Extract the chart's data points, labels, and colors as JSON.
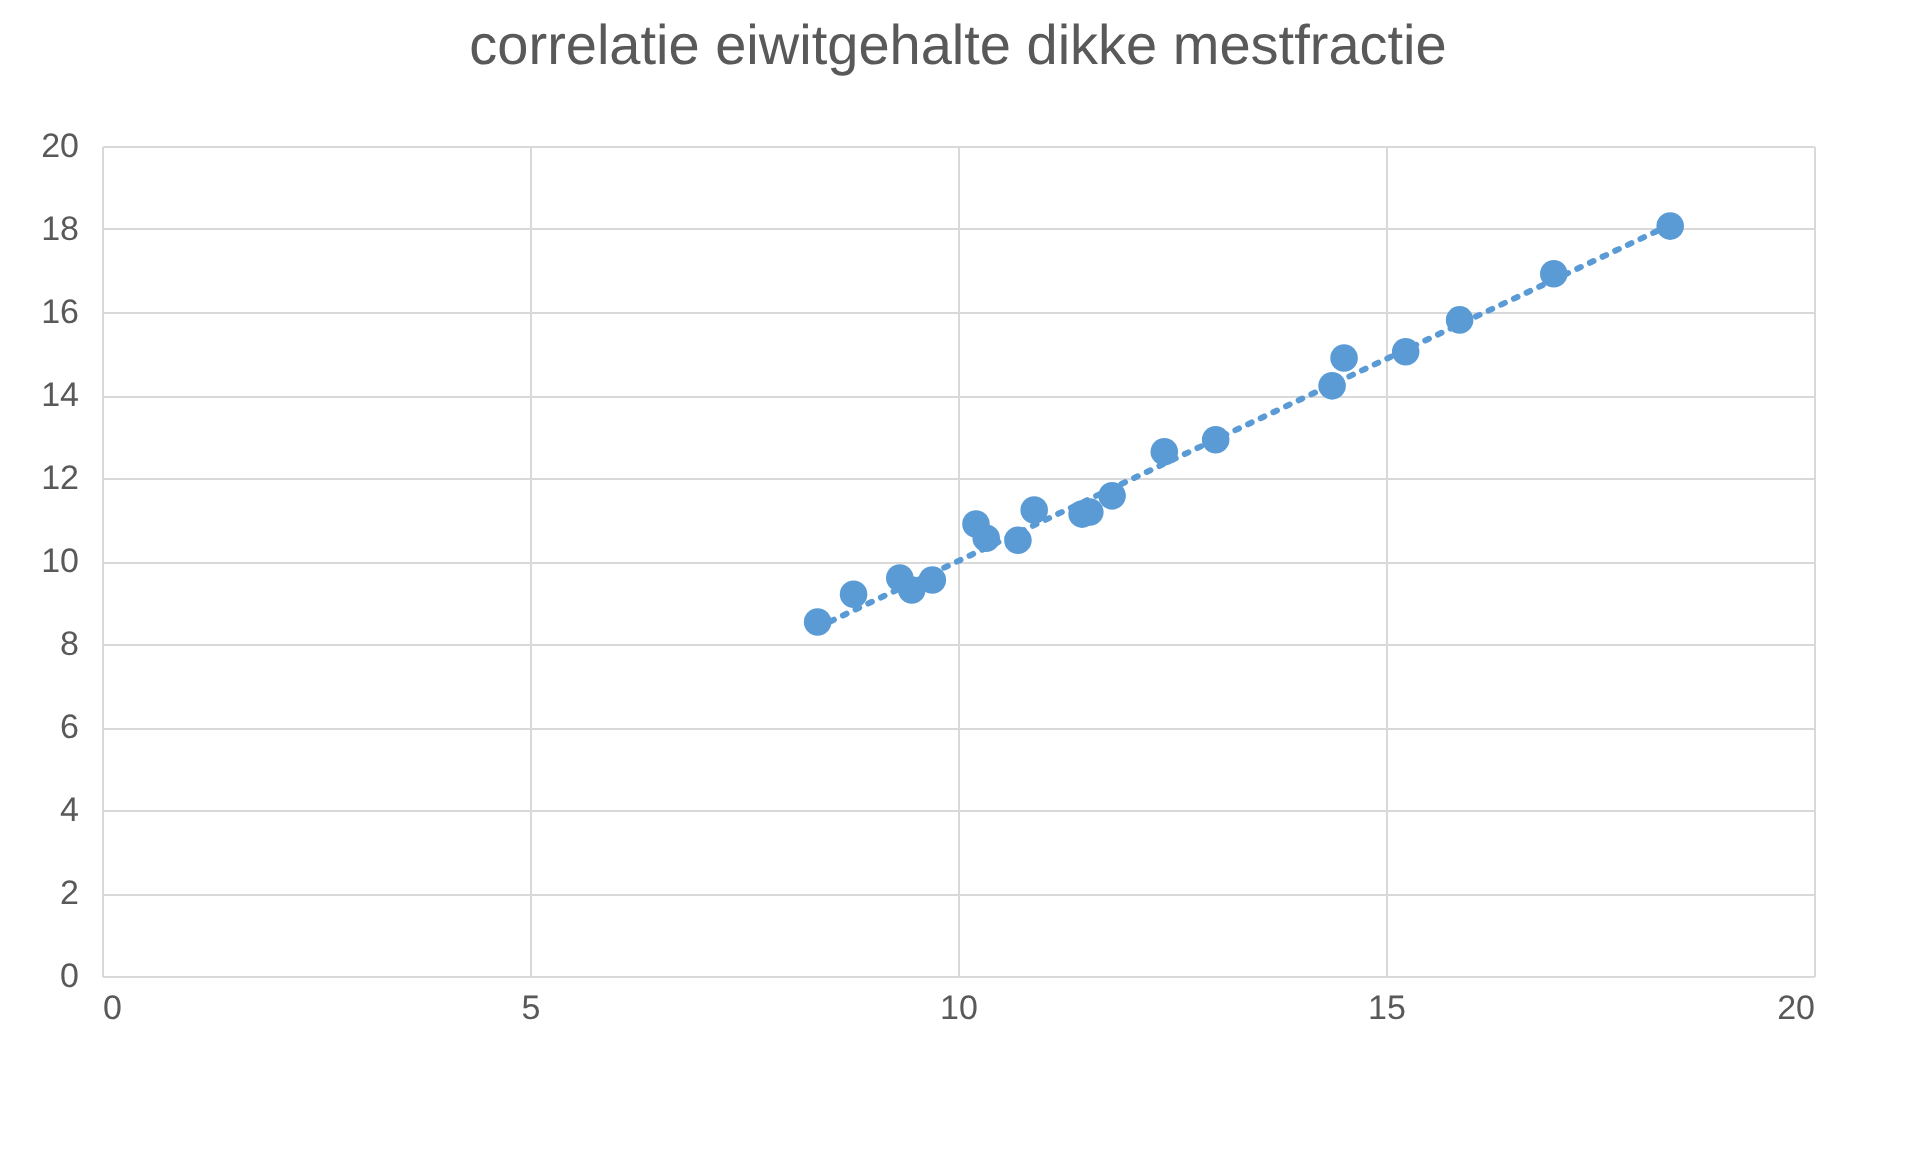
{
  "chart_data": {
    "type": "scatter",
    "title": "correlatie eiwitgehalte dikke mestfractie",
    "xlim": [
      0,
      20
    ],
    "xticks": [
      0,
      5,
      10,
      15,
      20
    ],
    "ylim": [
      0,
      20
    ],
    "yticks": [
      0,
      2,
      4,
      6,
      8,
      10,
      12,
      14,
      16,
      18,
      20
    ],
    "grid": true,
    "series": [
      {
        "color": "#5b9bd5",
        "marker": "circle",
        "x": [
          8.36,
          8.78,
          9.32,
          9.46,
          9.7,
          10.21,
          10.33,
          10.7,
          10.89,
          11.45,
          11.54,
          11.8,
          12.41,
          13.01,
          14.37,
          14.51,
          15.23,
          15.86,
          16.96,
          18.32
        ],
        "values": [
          8.53,
          9.2,
          9.59,
          9.3,
          9.54,
          10.89,
          10.55,
          10.5,
          11.23,
          11.13,
          11.18,
          11.57,
          12.63,
          12.92,
          14.22,
          14.89,
          15.04,
          15.81,
          16.92,
          18.07
        ]
      },
      {
        "type": "line",
        "color": "#5b9bd5",
        "line_style": "dotted",
        "x": [
          8.36,
          18.32
        ],
        "values": [
          8.4,
          18.1
        ]
      }
    ]
  }
}
